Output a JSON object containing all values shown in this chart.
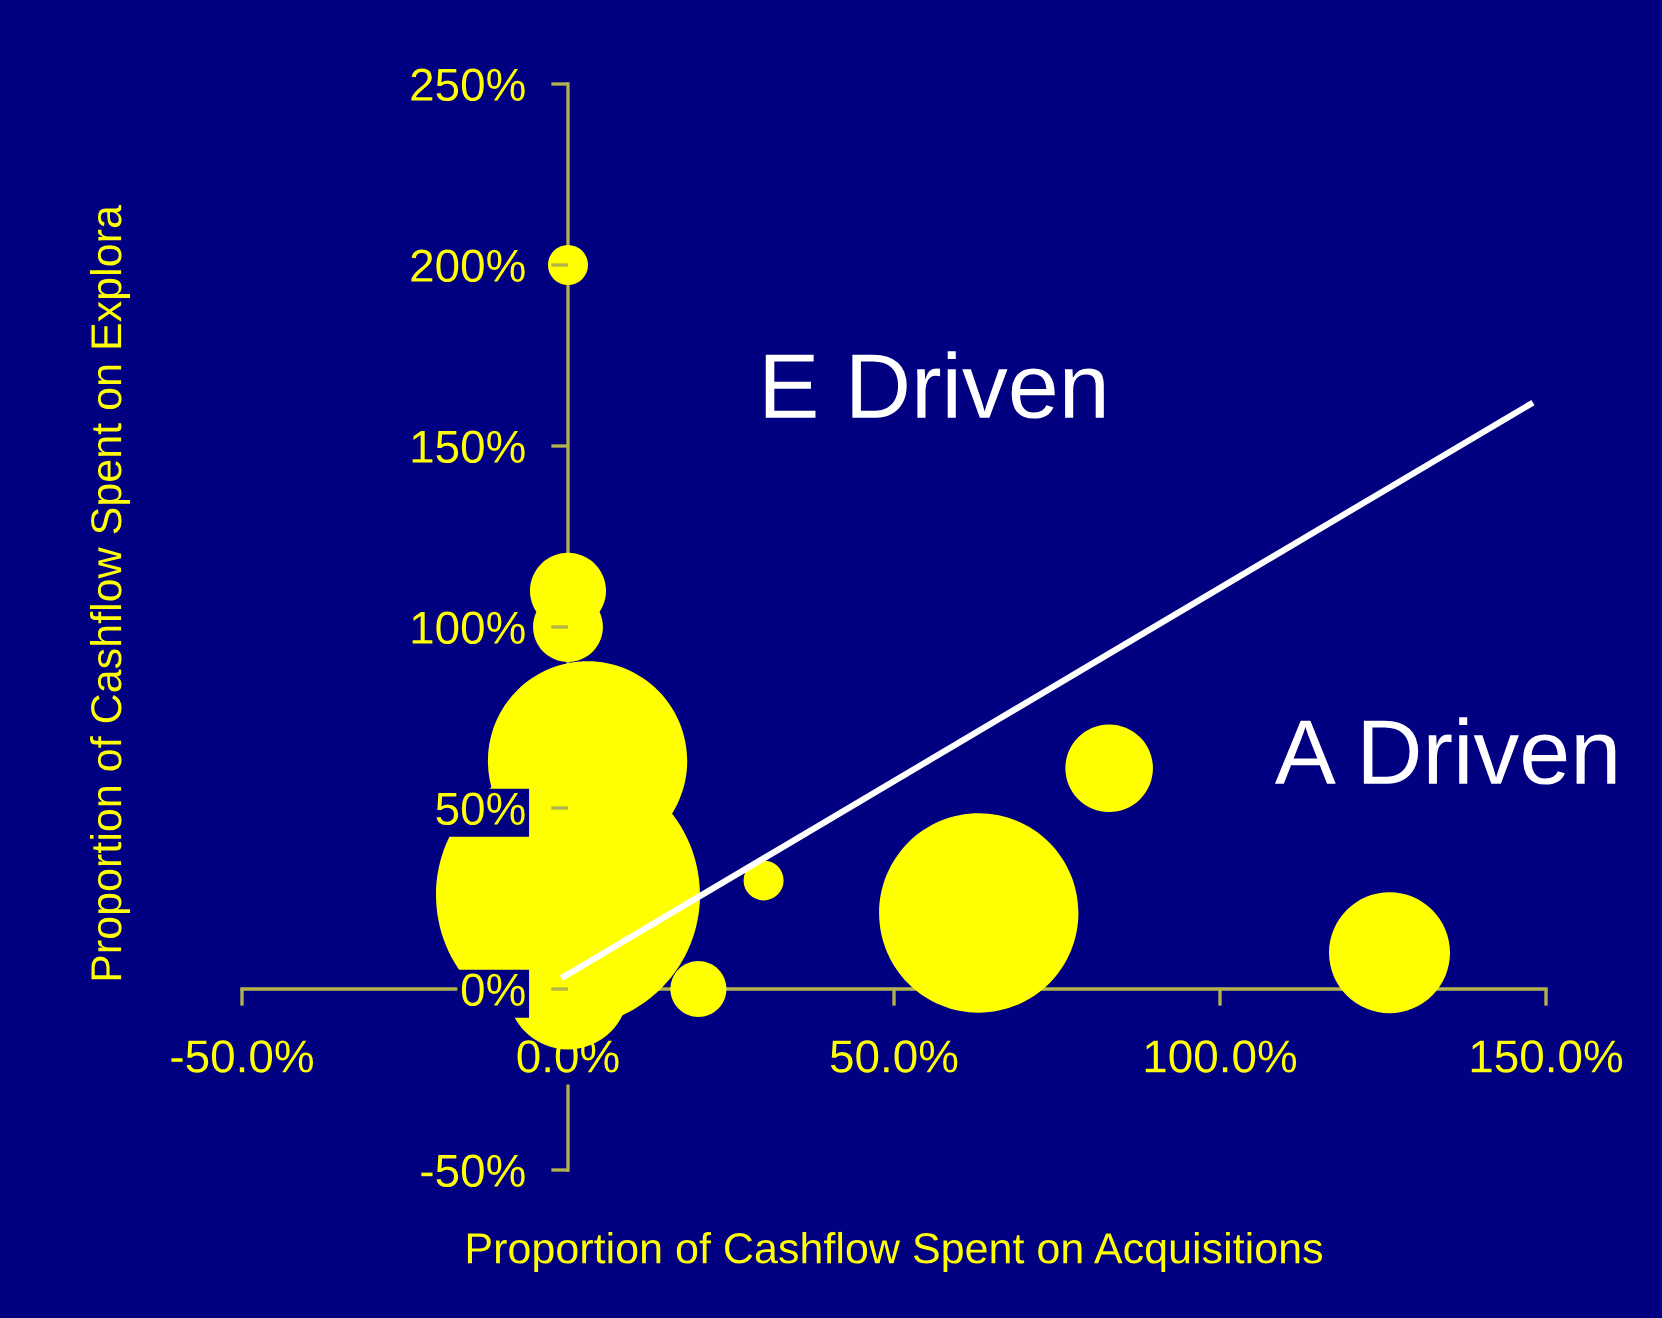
{
  "chart_data": {
    "type": "bubble",
    "xlabel": "Proportion of Cashflow Spent on Acquisitions",
    "ylabel": "Proportion of Cashflow Spent on Explora",
    "series": [
      {
        "color": "#ffff00",
        "x": [
          0,
          0,
          0,
          3,
          0,
          0,
          20,
          30,
          63,
          83,
          126
        ],
        "values": [
          200,
          110,
          100,
          63,
          26,
          0,
          0,
          30,
          21,
          61,
          10
        ],
        "sizes": [
          0.023,
          0.083,
          0.07,
          0.57,
          1,
          0.21,
          0.045,
          0.023,
          0.57,
          0.11,
          0.21
        ]
      },
      {
        "type": "line",
        "color": "#ffffff",
        "x": [
          -1,
          148
        ],
        "values": [
          3,
          162
        ],
        "line_style": "solid"
      }
    ],
    "xlim": [
      -50,
      150
    ],
    "xticks": [
      {
        "value": -50,
        "label": "-50.0%"
      },
      {
        "value": 0,
        "label": "0.0%"
      },
      {
        "value": 50,
        "label": "50.0%"
      },
      {
        "value": 100,
        "label": "100.0%"
      },
      {
        "value": 150,
        "label": "150.0%"
      }
    ],
    "ylim": [
      -50,
      250
    ],
    "yticks": [
      {
        "value": -50,
        "label": "-50%"
      },
      {
        "value": 0,
        "label": "0%"
      },
      {
        "value": 50,
        "label": "50%"
      },
      {
        "value": 100,
        "label": "100%"
      },
      {
        "value": 150,
        "label": "150%"
      },
      {
        "value": 200,
        "label": "200%"
      },
      {
        "value": 250,
        "label": "250%"
      }
    ],
    "annotations": [
      "E Driven",
      "A Driven"
    ]
  }
}
